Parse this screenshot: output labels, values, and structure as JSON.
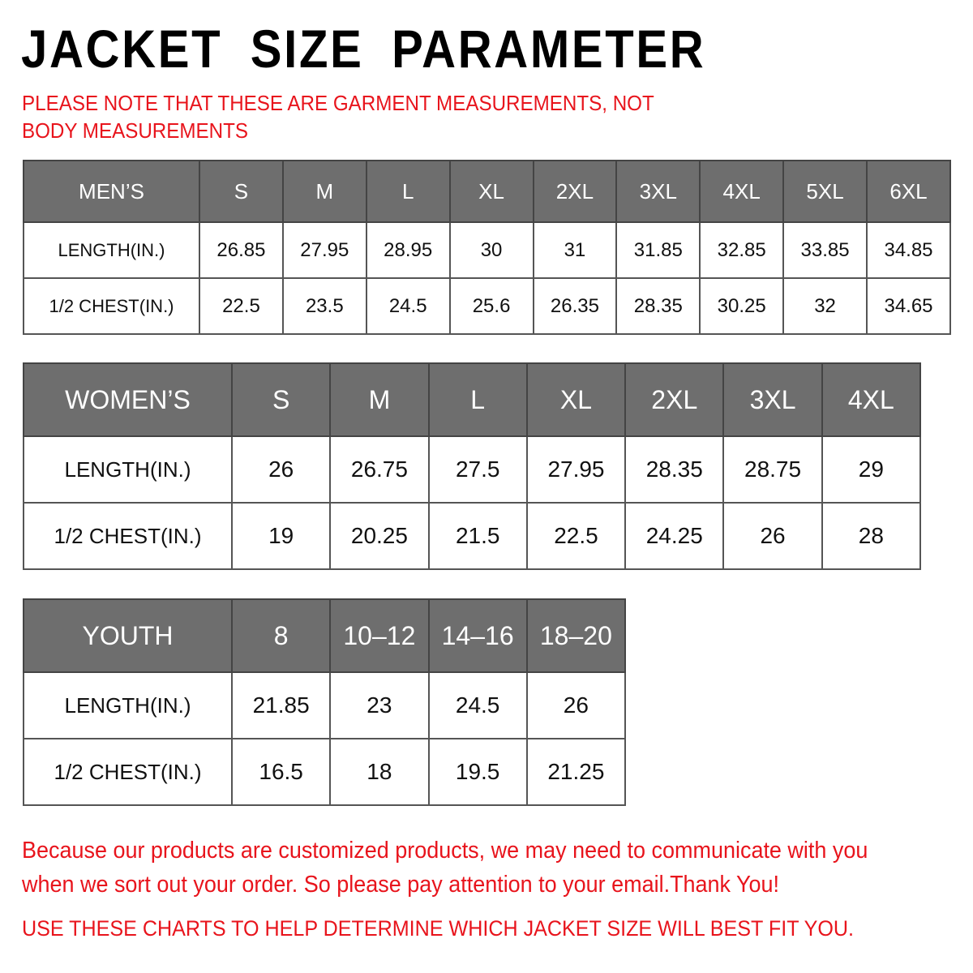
{
  "title": "JACKET SIZE PARAMETER",
  "note": "PLEASE NOTE THAT THESE ARE GARMENT MEASUREMENTS, NOT BODY MEASUREMENTS",
  "colors": {
    "header_bg": "#6e6e6e",
    "accent_red": "#e8141c"
  },
  "tables": {
    "men": {
      "header": [
        "MEN’S",
        "S",
        "M",
        "L",
        "XL",
        "2XL",
        "3XL",
        "4XL",
        "5XL",
        "6XL"
      ],
      "rows": [
        [
          "LENGTH(IN.)",
          "26.85",
          "27.95",
          "28.95",
          "30",
          "31",
          "31.85",
          "32.85",
          "33.85",
          "34.85"
        ],
        [
          "1/2 CHEST(IN.)",
          "22.5",
          "23.5",
          "24.5",
          "25.6",
          "26.35",
          "28.35",
          "30.25",
          "32",
          "34.65"
        ]
      ]
    },
    "women": {
      "header": [
        "WOMEN’S",
        "S",
        "M",
        "L",
        "XL",
        "2XL",
        "3XL",
        "4XL"
      ],
      "rows": [
        [
          "LENGTH(IN.)",
          "26",
          "26.75",
          "27.5",
          "27.95",
          "28.35",
          "28.75",
          "29"
        ],
        [
          "1/2 CHEST(IN.)",
          "19",
          "20.25",
          "21.5",
          "22.5",
          "24.25",
          "26",
          "28"
        ]
      ]
    },
    "youth": {
      "header": [
        "YOUTH",
        "8",
        "10–12",
        "14–16",
        "18–20"
      ],
      "rows": [
        [
          "LENGTH(IN.)",
          "21.85",
          "23",
          "24.5",
          "26"
        ],
        [
          "1/2 CHEST(IN.)",
          "16.5",
          "18",
          "19.5",
          "21.25"
        ]
      ]
    }
  },
  "footer": {
    "message": "Because our products are customized products, we may need to communicate with you when we sort out your order. So please pay attention to your email.Thank You!",
    "advice": "USE THESE CHARTS TO HELP DETERMINE WHICH JACKET SIZE WILL BEST FIT YOU."
  }
}
